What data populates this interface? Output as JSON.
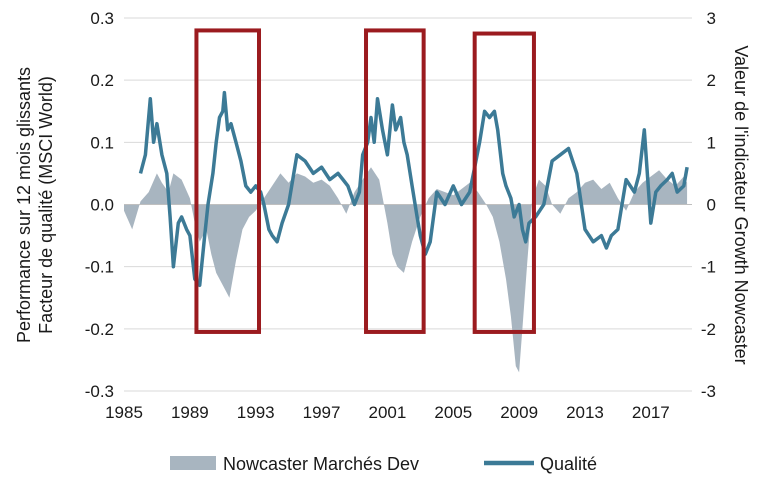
{
  "chart_data": {
    "type": "line",
    "title": "",
    "ylabel_left": [
      "Performance sur 12 mois glissants",
      "Facteur de qualité (MSCI World)"
    ],
    "ylabel_right": "Valeur de l'indicateur Growth Nowcaster",
    "xlim": [
      1985,
      2019.5
    ],
    "ylim_left": [
      -0.3,
      0.3
    ],
    "ylim_right": [
      -3,
      3
    ],
    "x_ticks": [
      1985,
      1989,
      1993,
      1997,
      2001,
      2005,
      2009,
      2013,
      2017
    ],
    "y_ticks_left": [
      "0.3",
      "0.2",
      "0.1",
      "0.0",
      "-0.1",
      "-0.2",
      "-0.3"
    ],
    "y_tick_values_left": [
      0.3,
      0.2,
      0.1,
      0.0,
      -0.1,
      -0.2,
      -0.3
    ],
    "y_ticks_right": [
      "3",
      "2",
      "1",
      "0",
      "-1",
      "-2",
      "-3"
    ],
    "y_tick_values_right": [
      3,
      2,
      1,
      0,
      -1,
      -2,
      -3
    ],
    "grid": "horizontal",
    "legend": "bottom",
    "highlight_color": "#9b1b1f",
    "highlights": [
      {
        "x0": 1989.4,
        "x1": 1993.2,
        "y0": -0.205,
        "y1": 0.28
      },
      {
        "x0": 1999.7,
        "x1": 2003.2,
        "y0": -0.205,
        "y1": 0.28
      },
      {
        "x0": 2006.3,
        "x1": 2009.9,
        "y0": -0.205,
        "y1": 0.275
      }
    ],
    "series": [
      {
        "name": "Nowcaster Marchés Dev",
        "type": "area",
        "axis": "right",
        "color": "#a8b5c0",
        "x": [
          1985.0,
          1985.5,
          1986.0,
          1986.5,
          1987.0,
          1987.3,
          1987.7,
          1988.0,
          1988.5,
          1989.0,
          1989.3,
          1989.6,
          1990.0,
          1990.3,
          1990.6,
          1991.0,
          1991.4,
          1991.8,
          1992.2,
          1992.6,
          1993.0,
          1993.5,
          1994.0,
          1994.5,
          1995.0,
          1995.5,
          1996.0,
          1996.5,
          1997.0,
          1997.5,
          1998.0,
          1998.5,
          1999.0,
          1999.5,
          2000.0,
          2000.5,
          2001.0,
          2001.3,
          2001.6,
          2002.0,
          2002.5,
          2003.0,
          2003.5,
          2004.0,
          2004.5,
          2005.0,
          2005.5,
          2006.0,
          2006.5,
          2007.0,
          2007.4,
          2007.8,
          2008.2,
          2008.5,
          2008.8,
          2009.0,
          2009.2,
          2009.5,
          2009.8,
          2010.2,
          2010.6,
          2011.0,
          2011.5,
          2012.0,
          2012.5,
          2013.0,
          2013.5,
          2014.0,
          2014.5,
          2015.0,
          2015.5,
          2016.0,
          2016.5,
          2017.0,
          2017.5,
          2018.0,
          2018.5,
          2019.0,
          2019.2
        ],
        "values": [
          -0.1,
          -0.4,
          0.05,
          0.2,
          0.5,
          0.35,
          0.2,
          0.5,
          0.4,
          0.1,
          -0.3,
          -0.6,
          -0.4,
          -0.8,
          -1.1,
          -1.3,
          -1.5,
          -0.9,
          -0.4,
          -0.2,
          -0.1,
          0.1,
          0.3,
          0.5,
          0.35,
          0.5,
          0.45,
          0.35,
          0.4,
          0.3,
          0.1,
          -0.15,
          0.2,
          0.4,
          0.6,
          0.4,
          -0.3,
          -0.8,
          -1.0,
          -1.1,
          -0.6,
          -0.2,
          0.1,
          0.25,
          0.2,
          0.15,
          0.25,
          0.35,
          0.2,
          0.0,
          -0.2,
          -0.6,
          -1.2,
          -1.8,
          -2.6,
          -2.7,
          -2.0,
          -0.9,
          0.1,
          0.4,
          0.3,
          0.0,
          -0.15,
          0.1,
          0.2,
          0.35,
          0.4,
          0.25,
          0.35,
          0.1,
          -0.1,
          0.2,
          0.35,
          0.45,
          0.55,
          0.4,
          0.3,
          0.45,
          0.35
        ]
      },
      {
        "name": "Qualité",
        "type": "line",
        "axis": "left",
        "color": "#3c7a96",
        "x": [
          1986.0,
          1986.3,
          1986.6,
          1986.8,
          1987.0,
          1987.3,
          1987.6,
          1987.8,
          1988.0,
          1988.3,
          1988.5,
          1988.8,
          1989.0,
          1989.3,
          1989.6,
          1989.9,
          1990.1,
          1990.4,
          1990.6,
          1990.8,
          1991.0,
          1991.1,
          1991.3,
          1991.5,
          1991.8,
          1992.1,
          1992.4,
          1992.7,
          1993.0,
          1993.3,
          1993.5,
          1993.8,
          1994.0,
          1994.3,
          1994.6,
          1995.0,
          1995.5,
          1996.0,
          1996.5,
          1997.0,
          1997.5,
          1998.0,
          1998.3,
          1998.6,
          1999.0,
          1999.3,
          1999.5,
          1999.8,
          2000.0,
          2000.2,
          2000.4,
          2000.7,
          2001.0,
          2001.3,
          2001.5,
          2001.8,
          2002.0,
          2002.2,
          2002.5,
          2002.8,
          2003.0,
          2003.3,
          2003.6,
          2004.0,
          2004.5,
          2005.0,
          2005.5,
          2006.0,
          2006.3,
          2006.6,
          2006.9,
          2007.2,
          2007.5,
          2007.7,
          2008.0,
          2008.2,
          2008.5,
          2008.7,
          2009.0,
          2009.2,
          2009.4,
          2009.6,
          2010.0,
          2010.5,
          2011.0,
          2011.5,
          2012.0,
          2012.5,
          2013.0,
          2013.5,
          2014.0,
          2014.3,
          2014.6,
          2015.0,
          2015.5,
          2016.0,
          2016.3,
          2016.6,
          2017.0,
          2017.3,
          2017.6,
          2018.0,
          2018.3,
          2018.6,
          2019.0,
          2019.2
        ],
        "values": [
          0.05,
          0.08,
          0.17,
          0.1,
          0.13,
          0.08,
          0.05,
          -0.02,
          -0.1,
          -0.03,
          -0.02,
          -0.04,
          -0.05,
          -0.12,
          -0.13,
          -0.05,
          0.0,
          0.05,
          0.1,
          0.14,
          0.15,
          0.18,
          0.12,
          0.13,
          0.1,
          0.07,
          0.03,
          0.02,
          0.03,
          0.02,
          0.0,
          -0.04,
          -0.05,
          -0.06,
          -0.03,
          0.0,
          0.08,
          0.07,
          0.05,
          0.06,
          0.04,
          0.05,
          0.04,
          0.03,
          0.0,
          0.02,
          0.08,
          0.1,
          0.14,
          0.1,
          0.17,
          0.12,
          0.08,
          0.16,
          0.12,
          0.14,
          0.1,
          0.08,
          0.03,
          -0.02,
          -0.05,
          -0.08,
          -0.06,
          0.02,
          0.0,
          0.03,
          0.0,
          0.02,
          0.06,
          0.1,
          0.15,
          0.14,
          0.15,
          0.12,
          0.05,
          0.03,
          0.01,
          -0.02,
          0.0,
          -0.04,
          -0.06,
          -0.03,
          -0.02,
          0.0,
          0.07,
          0.08,
          0.09,
          0.05,
          -0.04,
          -0.06,
          -0.05,
          -0.07,
          -0.05,
          -0.04,
          0.04,
          0.02,
          0.05,
          0.12,
          -0.03,
          0.02,
          0.03,
          0.04,
          0.05,
          0.02,
          0.03,
          0.06
        ]
      }
    ]
  }
}
